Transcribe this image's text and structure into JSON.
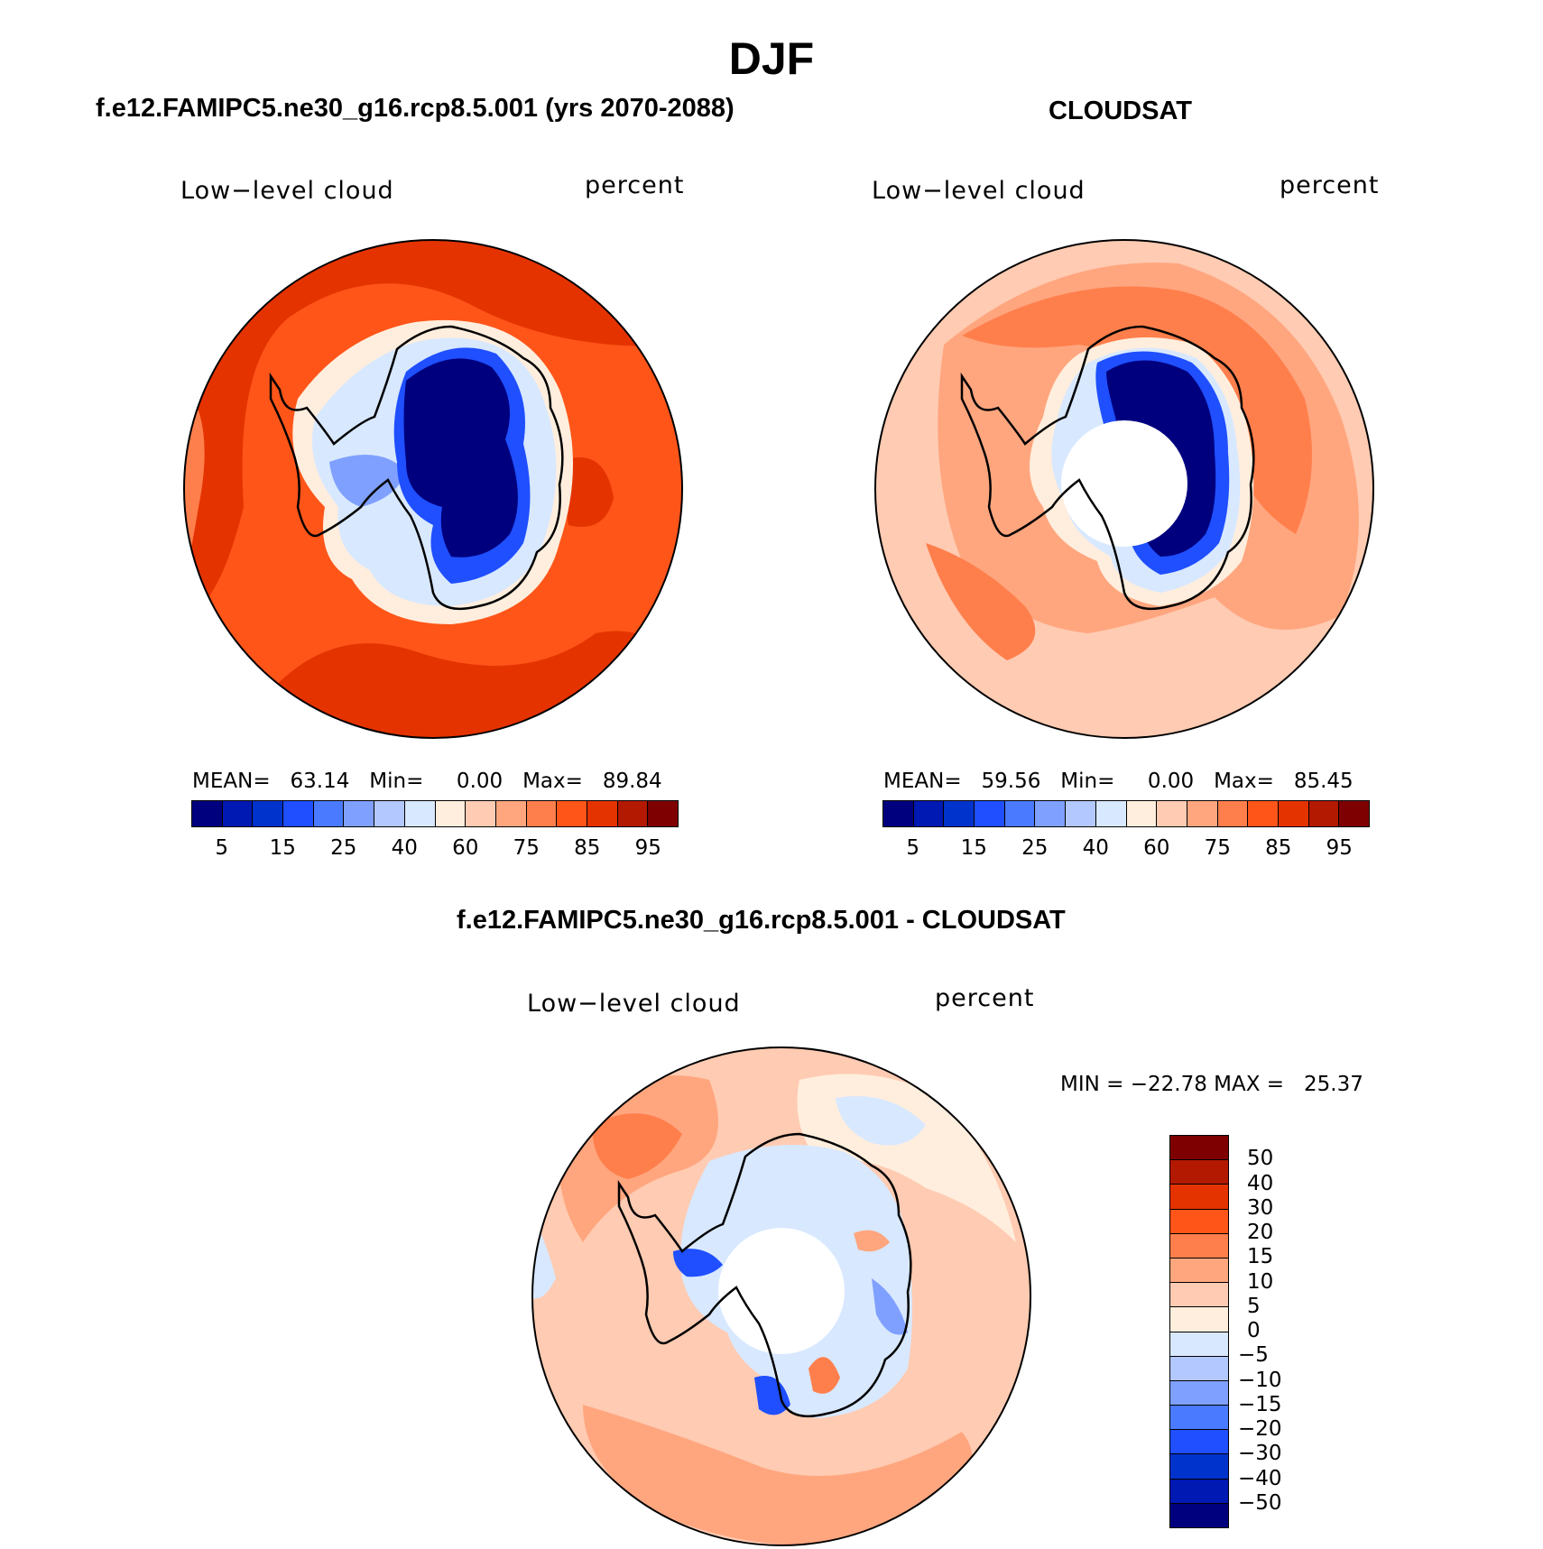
{
  "title": "DJF",
  "panels": {
    "model": {
      "header": "f.e12.FAMIPC5.ne30_g16.rcp8.5.001 (yrs 2070-2088)",
      "left_label": "Low−level cloud",
      "right_label": "percent",
      "stats": "MEAN=   63.14   Min=     0.00   Max=   89.84"
    },
    "obs": {
      "header": "CLOUDSAT",
      "left_label": "Low−level cloud",
      "right_label": "percent",
      "stats": "MEAN=   59.56   Min=     0.00   Max=   85.45"
    },
    "diff": {
      "header": "f.e12.FAMIPC5.ne30_g16.rcp8.5.001 - CLOUDSAT",
      "left_label": "Low−level cloud",
      "right_label": "percent",
      "stats": "MIN = −22.78 MAX =   25.37"
    }
  },
  "colorbar_abs": {
    "colors": [
      "#00007f",
      "#0019b2",
      "#0033cc",
      "#1f4fff",
      "#4a7aff",
      "#7fa0ff",
      "#b2c8ff",
      "#d8e8ff",
      "#ffeedd",
      "#ffcbb2",
      "#ffa67f",
      "#ff7f4c",
      "#ff5519",
      "#e53300",
      "#b21900",
      "#7f0000"
    ],
    "ticks": [
      "5",
      "15",
      "25",
      "40",
      "60",
      "75",
      "85",
      "95"
    ]
  },
  "colorbar_diff": {
    "colors": [
      "#7f0000",
      "#b21900",
      "#e53300",
      "#ff5519",
      "#ff7f4c",
      "#ffa67f",
      "#ffcbb2",
      "#ffeedd",
      "#d8e8ff",
      "#b2c8ff",
      "#7fa0ff",
      "#4a7aff",
      "#1f4fff",
      "#0033cc",
      "#0019b2",
      "#00007f"
    ],
    "ticks": [
      "50",
      "40",
      "30",
      "20",
      "15",
      "10",
      "5",
      "0",
      "−5",
      "−10",
      "−15",
      "−20",
      "−30",
      "−40",
      "−50"
    ]
  },
  "map_colors": {
    "ocean_high": "#e53300",
    "ocean_mid": "#ff5519",
    "ocean_light": "#ff7f4c",
    "ocean_pale": "#ffa67f",
    "ocean_paler": "#ffcbb2",
    "shelf": "#ffeedd",
    "ice_light": "#d8e8ff",
    "ice_mid": "#7fa0ff",
    "ice_deep": "#00007f",
    "ice_blue": "#1f4fff"
  }
}
